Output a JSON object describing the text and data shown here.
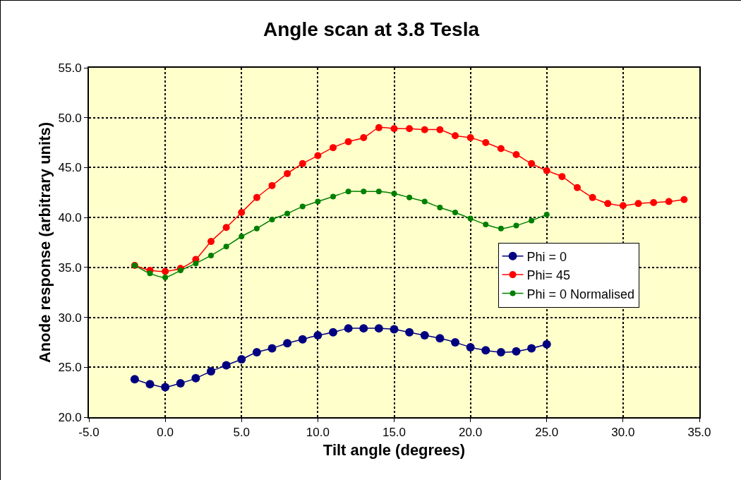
{
  "chart_data": {
    "type": "line",
    "title": "Angle scan at 3.8 Tesla",
    "xlabel": "Tilt angle (degrees)",
    "ylabel": "Anode response (arbitrary units)",
    "xlim": [
      -5,
      35
    ],
    "xticks": [
      {
        "value": -5,
        "label": "-5.0"
      },
      {
        "value": 0,
        "label": "0.0"
      },
      {
        "value": 5,
        "label": "5.0"
      },
      {
        "value": 10,
        "label": "10.0"
      },
      {
        "value": 15,
        "label": "15.0"
      },
      {
        "value": 20,
        "label": "20.0"
      },
      {
        "value": 25,
        "label": "25.0"
      },
      {
        "value": 30,
        "label": "30.0"
      },
      {
        "value": 35,
        "label": "35.0"
      }
    ],
    "ylim": [
      20,
      55
    ],
    "yticks": [
      {
        "value": 20,
        "label": "20.0"
      },
      {
        "value": 25,
        "label": "25.0"
      },
      {
        "value": 30,
        "label": "30.0"
      },
      {
        "value": 35,
        "label": "35.0"
      },
      {
        "value": 40,
        "label": "40.0"
      },
      {
        "value": 45,
        "label": "45.0"
      },
      {
        "value": 50,
        "label": "50.0"
      },
      {
        "value": 55,
        "label": "55.0"
      }
    ],
    "grid": true,
    "legend": "right",
    "marker": "circle",
    "series": [
      {
        "name": "Phi = 0",
        "color": "#000080",
        "x": [
          -2,
          -1,
          0,
          1,
          2,
          3,
          4,
          5,
          6,
          7,
          8,
          9,
          10,
          11,
          12,
          13,
          14,
          15,
          16,
          17,
          18,
          19,
          20,
          21,
          22,
          23,
          24,
          25
        ],
        "values": [
          23.8,
          23.3,
          23.0,
          23.4,
          23.9,
          24.6,
          25.2,
          25.8,
          26.5,
          26.9,
          27.4,
          27.8,
          28.2,
          28.5,
          28.9,
          28.9,
          28.9,
          28.8,
          28.5,
          28.2,
          27.9,
          27.5,
          27.0,
          26.7,
          26.5,
          26.6,
          26.9,
          27.3
        ]
      },
      {
        "name": "Phi= 45",
        "color": "#ff0000",
        "x": [
          -2,
          -1,
          0,
          1,
          2,
          3,
          4,
          5,
          6,
          7,
          8,
          9,
          10,
          11,
          12,
          13,
          14,
          15,
          16,
          17,
          18,
          19,
          20,
          21,
          22,
          23,
          24,
          25,
          26,
          27,
          28,
          29,
          30,
          31,
          32,
          33,
          34
        ],
        "values": [
          35.2,
          34.7,
          34.6,
          34.9,
          35.8,
          37.6,
          39.0,
          40.5,
          42.0,
          43.2,
          44.4,
          45.4,
          46.2,
          47.0,
          47.6,
          48.0,
          49.0,
          48.9,
          48.9,
          48.8,
          48.8,
          48.2,
          48.0,
          47.5,
          46.9,
          46.3,
          45.4,
          44.7,
          44.1,
          43.0,
          42.0,
          41.4,
          41.2,
          41.4,
          41.5,
          41.6,
          41.8
        ]
      },
      {
        "name": "Phi = 0 Normalised",
        "color": "#008000",
        "x": [
          -2,
          -1,
          0,
          1,
          2,
          3,
          4,
          5,
          6,
          7,
          8,
          9,
          10,
          11,
          12,
          13,
          14,
          15,
          16,
          17,
          18,
          19,
          20,
          21,
          22,
          23,
          24,
          25
        ],
        "values": [
          35.2,
          34.4,
          34.0,
          34.7,
          35.4,
          36.2,
          37.1,
          38.1,
          38.9,
          39.8,
          40.4,
          41.1,
          41.6,
          42.1,
          42.6,
          42.6,
          42.6,
          42.4,
          42.0,
          41.6,
          41.0,
          40.5,
          39.9,
          39.3,
          38.9,
          39.2,
          39.7,
          40.3
        ]
      }
    ]
  }
}
